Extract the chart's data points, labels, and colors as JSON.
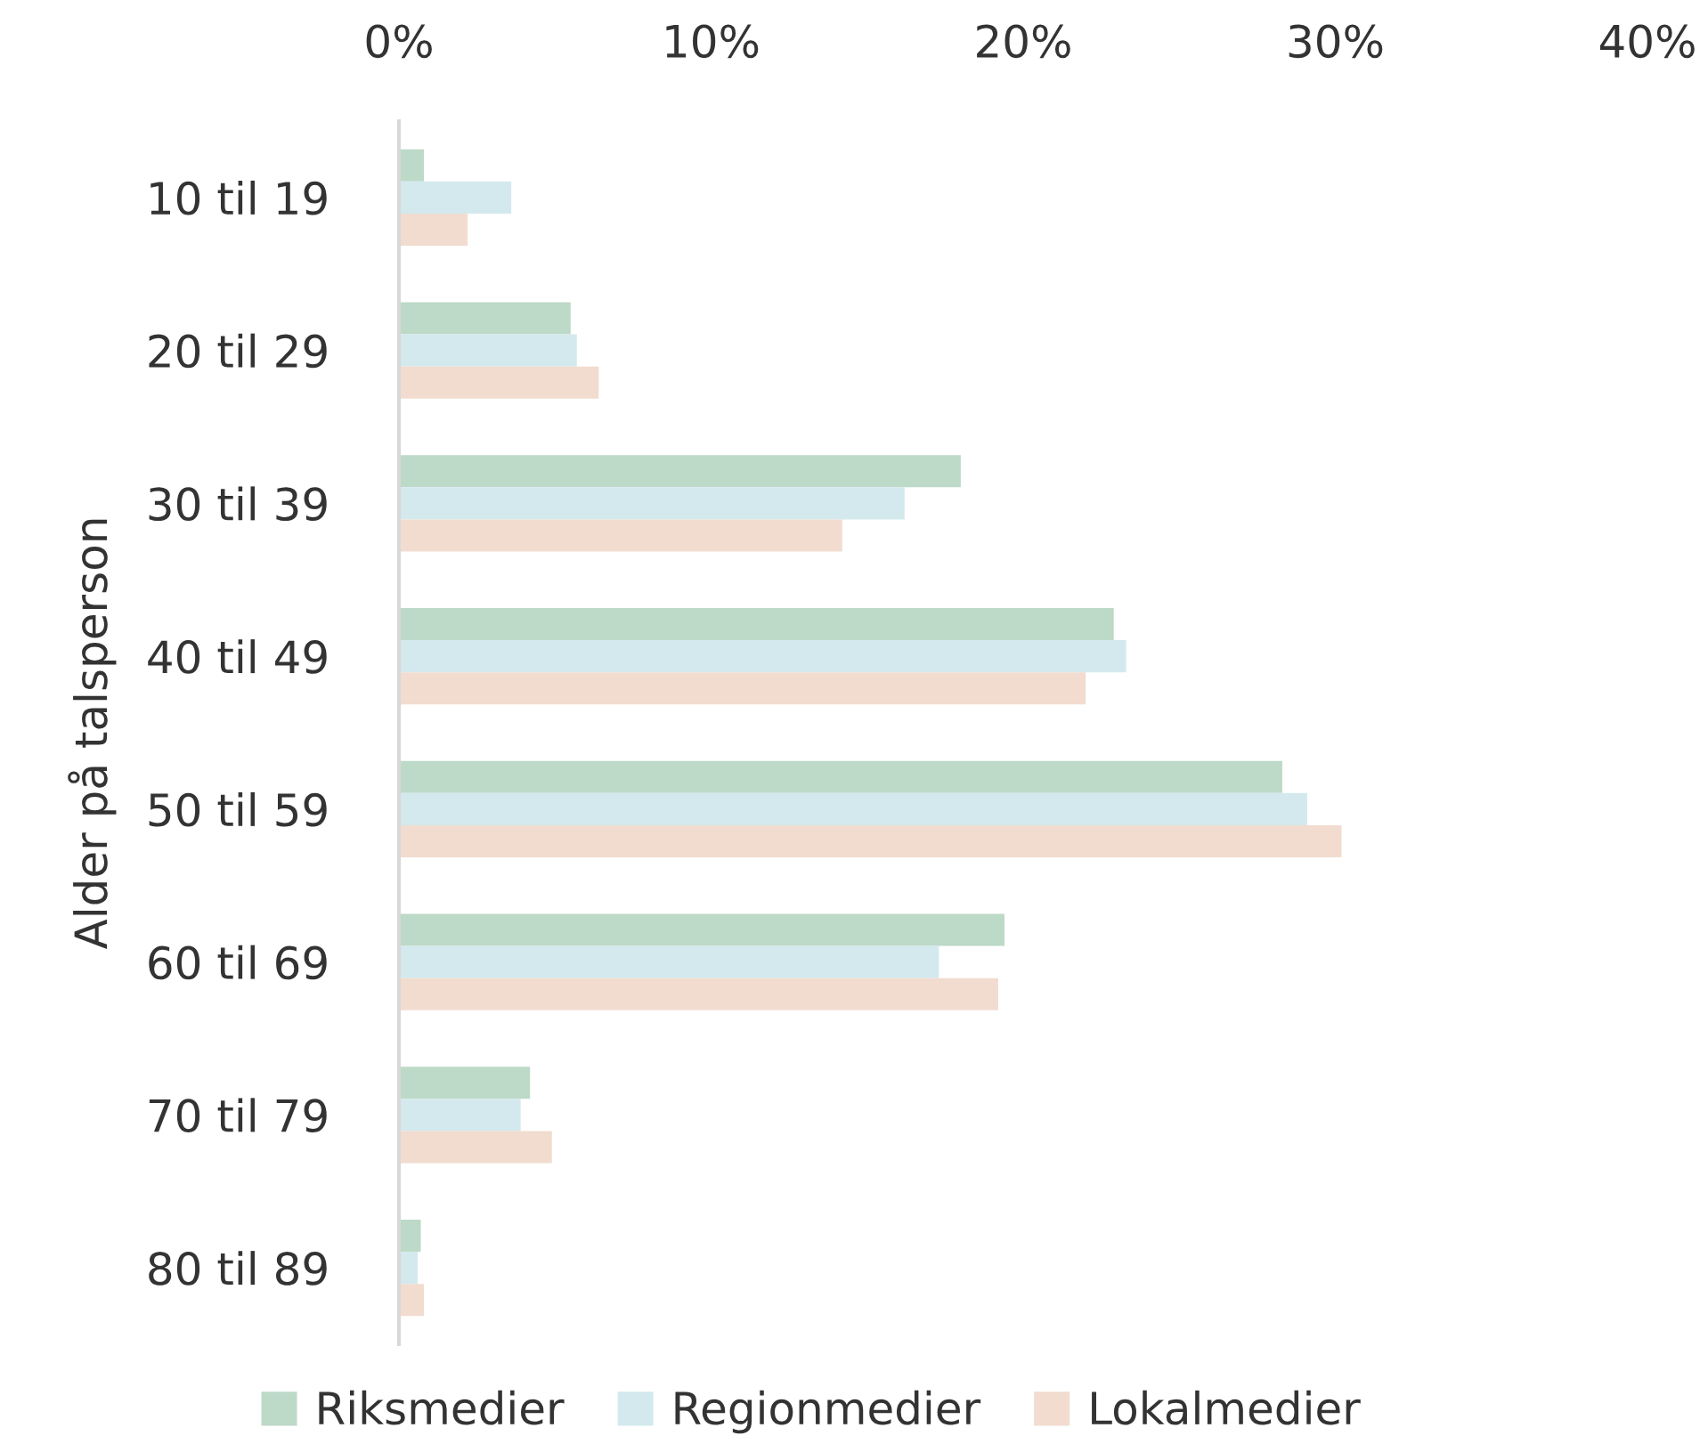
{
  "chart_data": {
    "type": "bar",
    "orientation": "horizontal",
    "ylabel": "Alder på talsperson",
    "categories": [
      "10 til 19",
      "20 til 29",
      "30 til 39",
      "40 til 49",
      "50 til 59",
      "60 til 69",
      "70 til 79",
      "80 til 89"
    ],
    "series": [
      {
        "name": "Riksmedier",
        "color": "#bdd9c8",
        "values": [
          0.8,
          5.5,
          18.0,
          22.9,
          28.3,
          19.4,
          4.2,
          0.7
        ]
      },
      {
        "name": "Regionmedier",
        "color": "#d3e9ee",
        "values": [
          3.6,
          5.7,
          16.2,
          23.3,
          29.1,
          17.3,
          3.9,
          0.6
        ]
      },
      {
        "name": "Lokalmedier",
        "color": "#f1dccf",
        "values": [
          2.2,
          6.4,
          14.2,
          22.0,
          30.2,
          19.2,
          4.9,
          0.8
        ]
      }
    ],
    "xlim": [
      0,
      40
    ],
    "xticks": [
      {
        "value": 0,
        "label": "0%"
      },
      {
        "value": 10,
        "label": "10%"
      },
      {
        "value": 20,
        "label": "20%"
      },
      {
        "value": 30,
        "label": "30%"
      },
      {
        "value": 40,
        "label": "40%"
      }
    ],
    "grid": false,
    "legend": "bottom"
  }
}
